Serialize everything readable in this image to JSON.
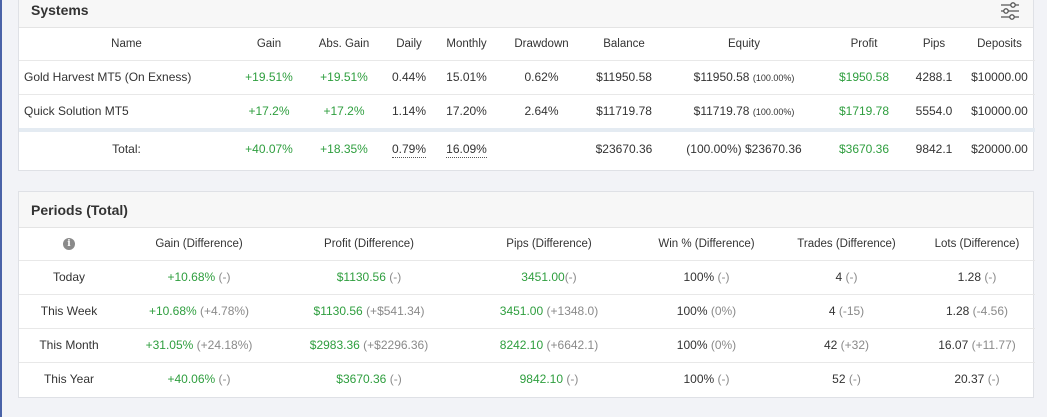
{
  "systems": {
    "title": "Systems",
    "columns": [
      "Name",
      "Gain",
      "Abs. Gain",
      "Daily",
      "Monthly",
      "Drawdown",
      "Balance",
      "Equity",
      "Profit",
      "Pips",
      "Deposits"
    ],
    "rows": [
      {
        "name": "Gold Harvest MT5 (On Exness)",
        "gain": "+19.51%",
        "abs_gain": "+19.51%",
        "daily": "0.44%",
        "monthly": "15.01%",
        "drawdown": "0.62%",
        "balance": "$11950.58",
        "equity": "$11950.58",
        "equity_pct": "(100.00%)",
        "profit": "$1950.58",
        "pips": "4288.1",
        "deposits": "$10000.00"
      },
      {
        "name": "Quick Solution MT5",
        "gain": "+17.2%",
        "abs_gain": "+17.2%",
        "daily": "1.14%",
        "monthly": "17.20%",
        "drawdown": "2.64%",
        "balance": "$11719.78",
        "equity": "$11719.78",
        "equity_pct": "(100.00%)",
        "profit": "$1719.78",
        "pips": "5554.0",
        "deposits": "$10000.00"
      }
    ],
    "total": {
      "label": "Total:",
      "gain": "+40.07%",
      "abs_gain": "+18.35%",
      "daily": "0.79%",
      "monthly": "16.09%",
      "balance": "$23670.36",
      "equity": "(100.00%) $23670.36",
      "profit": "$3670.36",
      "pips": "9842.1",
      "deposits": "$20000.00"
    },
    "filter_icon": "sliders-icon"
  },
  "periods": {
    "title": "Periods (Total)",
    "info_icon": "info-icon",
    "columns": [
      "Gain (Difference)",
      "Profit (Difference)",
      "Pips (Difference)",
      "Win % (Difference)",
      "Trades (Difference)",
      "Lots (Difference)"
    ],
    "rows": [
      {
        "label": "Today",
        "gain": "+10.68%",
        "gain_diff": "(-)",
        "profit": "$1130.56",
        "profit_diff": "(-)",
        "pips": "3451.00",
        "pips_diff": "(-)",
        "win": "100%",
        "win_diff": "(-)",
        "trades": "4",
        "trades_diff": "(-)",
        "lots": "1.28",
        "lots_diff": "(-)"
      },
      {
        "label": "This Week",
        "gain": "+10.68%",
        "gain_diff": "(+4.78%)",
        "profit": "$1130.56",
        "profit_diff": "(+$541.34)",
        "pips": "3451.00",
        "pips_diff": "(+1348.0)",
        "win": "100%",
        "win_diff": "(0%)",
        "trades": "4",
        "trades_diff": "(-15)",
        "lots": "1.28",
        "lots_diff": "(-4.56)"
      },
      {
        "label": "This Month",
        "gain": "+31.05%",
        "gain_diff": "(+24.18%)",
        "profit": "$2983.36",
        "profit_diff": "(+$2296.36)",
        "pips": "8242.10",
        "pips_diff": "(+6642.1)",
        "win": "100%",
        "win_diff": "(0%)",
        "trades": "42",
        "trades_diff": "(+32)",
        "lots": "16.07",
        "lots_diff": "(+11.77)"
      },
      {
        "label": "This Year",
        "gain": "+40.06%",
        "gain_diff": "(-)",
        "profit": "$3670.36",
        "profit_diff": "(-)",
        "pips": "9842.10",
        "pips_diff": "(-)",
        "win": "100%",
        "win_diff": "(-)",
        "trades": "52",
        "trades_diff": "(-)",
        "lots": "20.37",
        "lots_diff": "(-)"
      }
    ]
  },
  "colors": {
    "positive": "#2e9e3e",
    "muted": "#8a8a8a",
    "header_bg": "#f7f7f7",
    "left_rule": "#4a63a8"
  }
}
